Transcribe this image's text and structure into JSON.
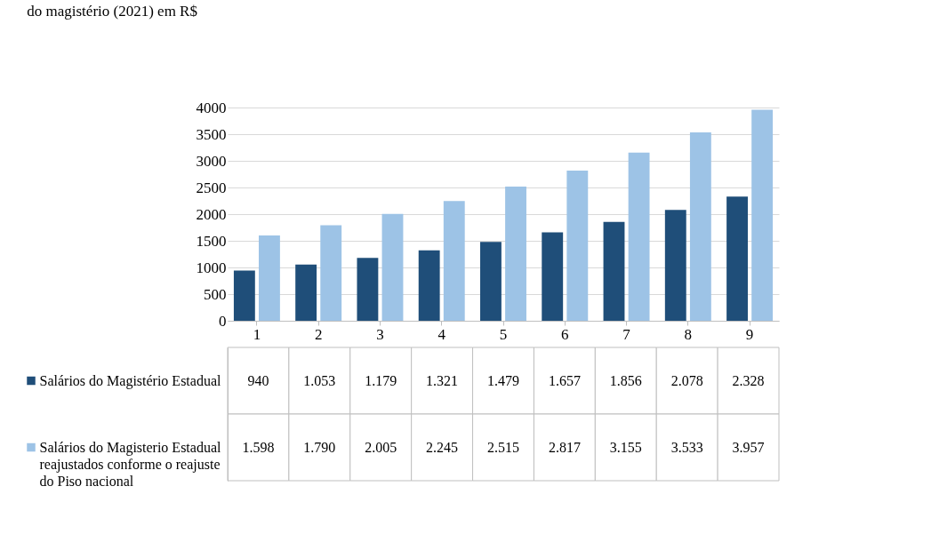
{
  "chart_data": {
    "type": "bar",
    "title": "do magistério (2021) em R$",
    "categories": [
      "1",
      "2",
      "3",
      "4",
      "5",
      "6",
      "7",
      "8",
      "9"
    ],
    "series": [
      {
        "name": "Salários do Magistério Estadual",
        "color": "#1f4e79",
        "values": [
          940,
          1053,
          1179,
          1321,
          1479,
          1657,
          1856,
          2078,
          2328
        ],
        "value_labels": [
          "940",
          "1.053",
          "1.179",
          "1.321",
          "1.479",
          "1.657",
          "1.856",
          "2.078",
          "2.328"
        ]
      },
      {
        "name": "Salários do Magisterio Estadual reajustados conforme o reajuste do Piso nacional",
        "color": "#9dc3e6",
        "values": [
          1598,
          1790,
          2005,
          2245,
          2515,
          2817,
          3155,
          3533,
          3957
        ],
        "value_labels": [
          "1.598",
          "1.790",
          "2.005",
          "2.245",
          "2.515",
          "2.817",
          "3.155",
          "3.533",
          "3.957"
        ]
      }
    ],
    "ylim": [
      0,
      4000
    ],
    "yticks": [
      0,
      500,
      1000,
      1500,
      2000,
      2500,
      3000,
      3500,
      4000
    ],
    "grid": "y",
    "legend": "bottom"
  }
}
